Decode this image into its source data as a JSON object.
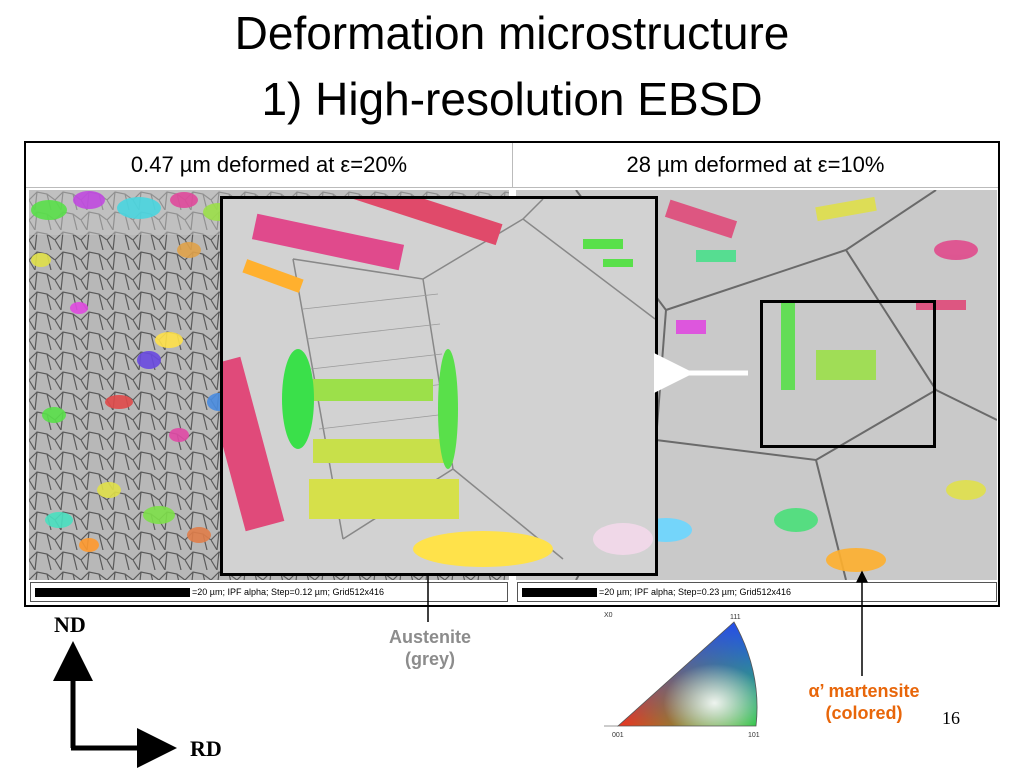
{
  "title": {
    "line1": "Deformation microstructure",
    "line2": "1) High-resolution EBSD"
  },
  "table": {
    "left_header": "0.47 µm deformed at ε=20%",
    "right_header": "28 µm deformed at ε=10%"
  },
  "scalebars": {
    "left": "=20 µm; IPF alpha; Step=0.12 µm; Grid512x416",
    "right": "=20 µm; IPF alpha; Step=0.23 µm; Grid512x416"
  },
  "axes": {
    "nd": "ND",
    "rd": "RD"
  },
  "callouts": {
    "austenite_line1": "Austenite",
    "austenite_line2": "(grey)",
    "martensite_line1": "α’ martensite",
    "martensite_line2": "(colored)"
  },
  "ipf": {
    "x0": "X0",
    "corner_111": "111",
    "corner_001": "001",
    "corner_101": "101"
  },
  "page_number": "16",
  "colors": {
    "austenite_text": "#8c8c8c",
    "martensite_text": "#e8660a"
  }
}
